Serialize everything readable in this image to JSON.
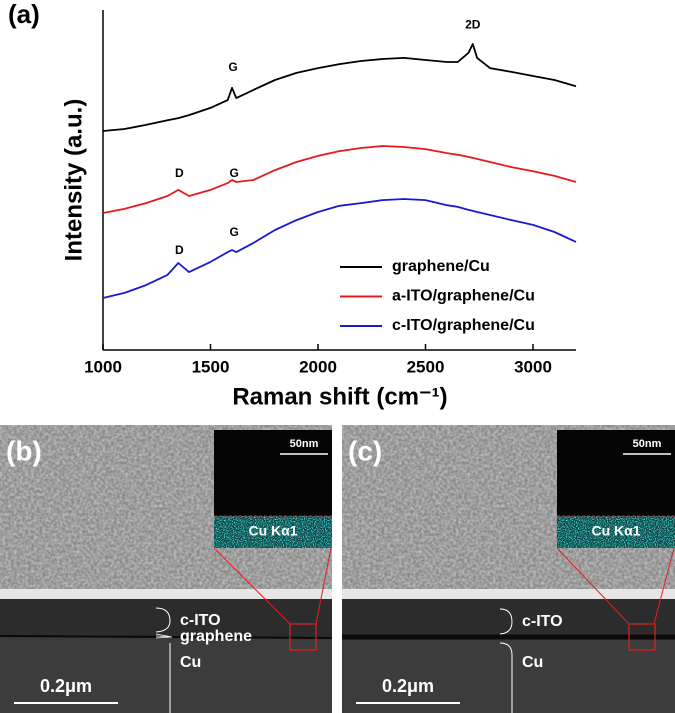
{
  "chart_data": {
    "type": "line",
    "panel_label": "(a)",
    "x_label": "Raman shift (cm⁻¹)",
    "y_label": "Intensity (a.u.)",
    "x": [
      1000,
      1100,
      1200,
      1300,
      1350,
      1400,
      1500,
      1580,
      1600,
      1620,
      1700,
      1800,
      1900,
      2000,
      2100,
      2200,
      2300,
      2400,
      2500,
      2600,
      2650,
      2700,
      2720,
      2740,
      2800,
      2900,
      3000,
      3100,
      3200
    ],
    "series": [
      {
        "name": "graphene/Cu",
        "color": "#000000",
        "values": [
          64.4,
          65.0,
          66.2,
          67.6,
          68.2,
          69.1,
          71.2,
          73.5,
          77.1,
          74.1,
          76.5,
          79.4,
          81.5,
          82.9,
          84.1,
          85.0,
          85.6,
          85.9,
          85.3,
          84.7,
          84.7,
          87.4,
          90.0,
          85.9,
          82.9,
          81.8,
          80.6,
          79.4,
          77.6
        ]
      },
      {
        "name": "a-ITO/graphene/Cu",
        "color": "#e41a1c",
        "values": [
          40.3,
          41.5,
          43.2,
          45.3,
          47.1,
          45.3,
          47.1,
          49.1,
          50.0,
          49.4,
          50.0,
          52.9,
          55.3,
          57.1,
          58.5,
          59.4,
          60.0,
          59.7,
          59.1,
          57.9,
          57.4,
          56.8,
          56.5,
          56.2,
          55.3,
          53.8,
          52.6,
          51.2,
          49.4
        ]
      },
      {
        "name": "c-ITO/graphene/Cu",
        "color": "#1a1acf",
        "values": [
          15.3,
          16.8,
          19.1,
          22.1,
          25.6,
          22.9,
          25.9,
          28.8,
          29.4,
          28.8,
          31.5,
          35.3,
          38.2,
          40.6,
          42.4,
          43.2,
          44.1,
          44.4,
          44.1,
          42.6,
          42.1,
          41.2,
          40.9,
          40.6,
          39.7,
          38.2,
          36.8,
          34.7,
          31.8
        ]
      }
    ],
    "xlim": [
      1000,
      3200
    ],
    "xticks": [
      1000,
      1500,
      2000,
      2500,
      3000
    ],
    "ylim": [
      0,
      100
    ],
    "legend": "lower right",
    "annotations": [
      {
        "text": "G",
        "x": 1605,
        "y": 80.6
      },
      {
        "text": "2D",
        "x": 2720,
        "y": 93.2
      },
      {
        "text": "D",
        "x": 1355,
        "y": 49.4
      },
      {
        "text": "G",
        "x": 1610,
        "y": 49.4
      },
      {
        "text": "D",
        "x": 1355,
        "y": 26.8
      },
      {
        "text": "G",
        "x": 1610,
        "y": 32.1
      }
    ]
  },
  "panels": [
    {
      "label": "(b)",
      "inset_scale": "50nm",
      "inset_label": "Cu Kα1",
      "layers": [
        "c-ITO",
        "graphene",
        "Cu"
      ],
      "scale_bar": "0.2μm"
    },
    {
      "label": "(c)",
      "inset_scale": "50nm",
      "inset_label": "Cu Kα1",
      "layers": [
        "c-ITO",
        "Cu"
      ],
      "scale_bar": "0.2μm"
    }
  ]
}
